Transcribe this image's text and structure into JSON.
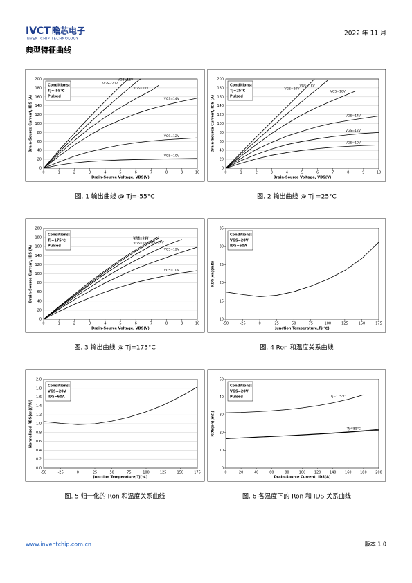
{
  "header": {
    "logo": "IVCT",
    "company": "瞻芯电子",
    "company_en": "INVENTCHIP TECHNOLOGY",
    "date": "2022 年 11 月",
    "section": "典型特征曲线"
  },
  "footer": {
    "url": "www.inventchip.com.cn",
    "version": "版本 1.0"
  },
  "chart_data": [
    {
      "type": "line",
      "title": "图. 1 输出曲线 @ Tj=-55°C",
      "x_label": "Drain-Source Voltage, VDS(V)",
      "y_label": "Drain-Source Current, IDS (A)",
      "conditions": [
        "Conditions:",
        "Tj=-55℃",
        "Pulsed"
      ],
      "xlim": [
        0,
        10
      ],
      "xticks": [
        0,
        1,
        2,
        3,
        4,
        5,
        6,
        7,
        8,
        9,
        10
      ],
      "ylim": [
        0,
        200
      ],
      "yticks": [
        0,
        20,
        40,
        60,
        80,
        100,
        120,
        140,
        160,
        180,
        200
      ],
      "grid": true,
      "series": [
        {
          "name": "VGS=20V",
          "color": "#000000",
          "x": [
            0,
            1,
            2,
            3,
            4,
            5,
            5.5
          ],
          "values": [
            0,
            40,
            78,
            115,
            150,
            184,
            200
          ]
        },
        {
          "name": "VGS=18V",
          "color": "#000000",
          "x": [
            0,
            1,
            2,
            3,
            4,
            5,
            6,
            6.3
          ],
          "values": [
            0,
            36,
            70,
            102,
            133,
            163,
            192,
            200
          ]
        },
        {
          "name": "VGS=16V",
          "color": "#000000",
          "x": [
            0,
            1,
            2,
            3,
            4,
            5,
            6,
            7,
            7.5
          ],
          "values": [
            0,
            32,
            62,
            90,
            114,
            136,
            156,
            174,
            186
          ]
        },
        {
          "name": "VGS=14V",
          "color": "#000000",
          "x": [
            0,
            1,
            2,
            3,
            4,
            5,
            6,
            7,
            8,
            9,
            10
          ],
          "values": [
            0,
            27,
            52,
            74,
            93,
            108,
            122,
            133,
            142,
            150,
            157
          ]
        },
        {
          "name": "VGS=12V",
          "color": "#000000",
          "x": [
            0,
            1,
            2,
            3,
            4,
            5,
            6,
            7,
            8,
            9,
            10
          ],
          "values": [
            0,
            14,
            27,
            37,
            45,
            52,
            57,
            61,
            64,
            66,
            68
          ]
        },
        {
          "name": "VGS=10V",
          "color": "#000000",
          "x": [
            0,
            1,
            2,
            3,
            4,
            5,
            6,
            7,
            8,
            9,
            10
          ],
          "values": [
            0,
            7,
            12,
            15,
            17,
            18.5,
            19.5,
            20,
            21,
            21.5,
            22
          ]
        }
      ]
    },
    {
      "type": "line",
      "title": "图. 2 输出曲线 @ Tj =25°C",
      "x_label": "Drain-Source Voltage, VDS(V)",
      "y_label": "Drain-Source Current, IDS (A)",
      "conditions": [
        "Conditions:",
        "Tj=25℃",
        "Pulsed"
      ],
      "xlim": [
        0,
        10
      ],
      "xticks": [
        0,
        1,
        2,
        3,
        4,
        5,
        6,
        7,
        8,
        9,
        10
      ],
      "ylim": [
        0,
        200
      ],
      "yticks": [
        0,
        20,
        40,
        60,
        80,
        100,
        120,
        140,
        160,
        180,
        200
      ],
      "grid": true,
      "series": [
        {
          "name": "VGS=20V",
          "color": "#000000",
          "x": [
            0,
            1,
            2,
            3,
            4,
            5,
            5.8
          ],
          "values": [
            0,
            35,
            70,
            104,
            138,
            172,
            200
          ]
        },
        {
          "name": "VGS=18V",
          "color": "#000000",
          "x": [
            0,
            1,
            2,
            3,
            4,
            5,
            6,
            6.7
          ],
          "values": [
            0,
            31,
            62,
            92,
            122,
            150,
            178,
            198
          ]
        },
        {
          "name": "VGS=16V",
          "color": "#000000",
          "x": [
            0,
            1,
            2,
            3,
            4,
            5,
            6,
            7,
            8,
            8.5
          ],
          "values": [
            0,
            27,
            53,
            78,
            100,
            120,
            137,
            152,
            166,
            173
          ]
        },
        {
          "name": "VGS=14V",
          "color": "#000000",
          "x": [
            0,
            1,
            2,
            3,
            4,
            5,
            6,
            7,
            8,
            9,
            10
          ],
          "values": [
            0,
            22,
            42,
            58,
            72,
            83,
            93,
            101,
            107,
            112,
            117
          ]
        },
        {
          "name": "VGS=12V",
          "color": "#000000",
          "x": [
            0,
            1,
            2,
            3,
            4,
            5,
            6,
            7,
            8,
            9,
            10
          ],
          "values": [
            0,
            17,
            31,
            43,
            53,
            60,
            66,
            71,
            75,
            78,
            80
          ]
        },
        {
          "name": "VGS=10V",
          "color": "#000000",
          "x": [
            0,
            1,
            2,
            3,
            4,
            5,
            6,
            7,
            8,
            9,
            10
          ],
          "values": [
            0,
            11,
            21,
            29,
            35,
            40,
            44,
            47,
            49,
            51,
            52
          ]
        }
      ]
    },
    {
      "type": "line",
      "title": "图. 3 输出曲线 @ Tj=175°C",
      "x_label": "Drain-Source Voltage, VDS(V)",
      "y_label": "Drain-Source Current, IDS (A)",
      "conditions": [
        "Conditions:",
        "Tj=175℃",
        "Pulsed"
      ],
      "xlim": [
        0,
        10
      ],
      "xticks": [
        0,
        1,
        2,
        3,
        4,
        5,
        6,
        7,
        8,
        9,
        10
      ],
      "ylim": [
        0,
        200
      ],
      "yticks": [
        0,
        20,
        40,
        60,
        80,
        100,
        120,
        140,
        160,
        180,
        200
      ],
      "grid": true,
      "series": [
        {
          "name": "VGS=20V",
          "color": "#000000",
          "x": [
            0,
            1,
            2,
            3,
            4,
            5,
            6,
            7,
            7.5
          ],
          "values": [
            0,
            28,
            55,
            82,
            107,
            131,
            153,
            173,
            182
          ]
        },
        {
          "name": "VGS=18V",
          "color": "#000000",
          "x": [
            0,
            1,
            2,
            3,
            4,
            5,
            6,
            7,
            7.5
          ],
          "values": [
            0,
            27,
            53,
            79,
            104,
            128,
            150,
            170,
            179
          ]
        },
        {
          "name": "VGS=16V",
          "color": "#000000",
          "x": [
            0,
            1,
            2,
            3,
            4,
            5,
            6,
            7,
            7.7
          ],
          "values": [
            0,
            26,
            51,
            76,
            100,
            122,
            143,
            162,
            174
          ]
        },
        {
          "name": "VGS=14V",
          "color": "#000000",
          "x": [
            0,
            1,
            2,
            3,
            4,
            5,
            6,
            7,
            8,
            9
          ],
          "values": [
            0,
            24,
            48,
            70,
            92,
            112,
            130,
            147,
            163,
            176
          ]
        },
        {
          "name": "VGS=12V",
          "color": "#000000",
          "x": [
            0,
            1,
            2,
            3,
            4,
            5,
            6,
            7,
            8,
            9,
            10
          ],
          "values": [
            0,
            22,
            43,
            62,
            80,
            96,
            111,
            124,
            136,
            148,
            159
          ]
        },
        {
          "name": "VGS=10V",
          "color": "#000000",
          "x": [
            0,
            1,
            2,
            3,
            4,
            5,
            6,
            7,
            8,
            9,
            10
          ],
          "values": [
            0,
            17,
            33,
            47,
            60,
            71,
            81,
            89,
            96,
            102,
            107
          ]
        }
      ]
    },
    {
      "type": "line",
      "title": "图. 4 Ron 和温度关系曲线",
      "x_label": "Junction Temperature,Tj(℃)",
      "y_label": "RDS(on)(mΩ)",
      "conditions": [
        "Conditions:",
        "VGS=20V",
        "IDS=60A"
      ],
      "xlim": [
        -50,
        175
      ],
      "xticks": [
        -50,
        -25,
        0,
        25,
        50,
        75,
        100,
        125,
        150,
        175
      ],
      "ylim": [
        10,
        35
      ],
      "yticks": [
        10,
        15,
        20,
        25,
        30,
        35
      ],
      "grid": false,
      "series": [
        {
          "color": "#000000",
          "x": [
            -50,
            -25,
            0,
            25,
            50,
            75,
            100,
            125,
            150,
            175
          ],
          "values": [
            17.5,
            16.8,
            16.2,
            16.6,
            17.6,
            19.1,
            21.0,
            23.4,
            26.7,
            31.2
          ]
        }
      ]
    },
    {
      "type": "line",
      "title": "图. 5 归一化的 Ron 和温度关系曲线",
      "x_label": "Junction Temperature,Tj(℃)",
      "y_label": "Normalized RDS(on)(P.U)",
      "conditions": [
        "Conditions:",
        "VGS=20V",
        "IDS=60A"
      ],
      "xlim": [
        -50,
        175
      ],
      "xticks": [
        -50,
        -25,
        0,
        25,
        50,
        75,
        100,
        125,
        150,
        175
      ],
      "ylim": [
        0,
        2
      ],
      "yticks": [
        {
          "value": 0,
          "label": "0.0"
        },
        0.2,
        0.4,
        0.6,
        0.8,
        {
          "value": 1,
          "label": "1.0"
        },
        1.2,
        1.4,
        1.6,
        1.8,
        {
          "value": 2,
          "label": "2.0"
        }
      ],
      "grid": true,
      "series": [
        {
          "color": "#000000",
          "x": [
            -50,
            -25,
            0,
            25,
            50,
            75,
            100,
            125,
            150,
            175
          ],
          "values": [
            1.05,
            1.01,
            0.98,
            1.0,
            1.06,
            1.15,
            1.27,
            1.42,
            1.61,
            1.83
          ]
        }
      ]
    },
    {
      "type": "line",
      "title": "图. 6 各温度下的 Ron 和 IDS 关系曲线",
      "x_label": "Drain-Source Current, IDS(A)",
      "y_label": "RDS(on)(mΩ)",
      "conditions": [
        "Conditions:",
        "VGS=20V",
        "Pulsed"
      ],
      "xlim": [
        0,
        200
      ],
      "xticks": [
        0,
        20,
        40,
        60,
        80,
        100,
        120,
        140,
        160,
        180,
        200
      ],
      "ylim": [
        0,
        50
      ],
      "yticks": [
        0,
        10,
        20,
        30,
        40,
        50
      ],
      "grid": false,
      "series": [
        {
          "name": "Tj=175℃",
          "color": "#000000",
          "x": [
            0,
            20,
            40,
            60,
            80,
            100,
            120,
            140,
            160,
            180
          ],
          "values": [
            31.2,
            31.4,
            31.8,
            32.3,
            33,
            34,
            35.2,
            36.8,
            38.8,
            41.3
          ]
        },
        {
          "name": "Tj=25℃",
          "color": "#000000",
          "x": [
            0,
            20,
            40,
            60,
            80,
            100,
            120,
            140,
            160,
            180,
            200
          ],
          "values": [
            16.6,
            17.1,
            17.5,
            17.9,
            18.3,
            18.8,
            19.3,
            19.8,
            20.4,
            21.1,
            21.8
          ]
        },
        {
          "name": "Tj=-55℃",
          "color": "#000000",
          "x": [
            0,
            20,
            40,
            60,
            80,
            100,
            120,
            140,
            160,
            180,
            200
          ],
          "values": [
            16.6,
            17.0,
            17.4,
            17.8,
            18.2,
            18.6,
            19.1,
            19.6,
            20.2,
            20.8,
            21.4
          ]
        }
      ]
    }
  ]
}
